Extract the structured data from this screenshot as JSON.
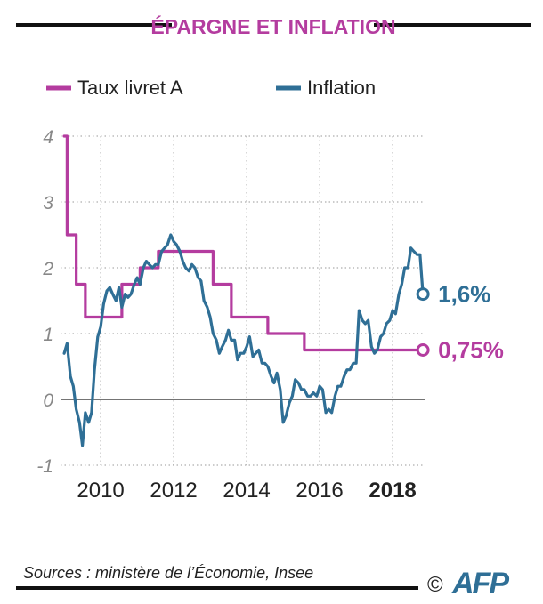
{
  "chart_data": {
    "type": "line",
    "title": "ÉPARGNE ET INFLATION",
    "xlabel": "",
    "ylabel": "",
    "xlim": [
      2008.9,
      2018.9
    ],
    "ylim": [
      -1,
      4
    ],
    "x_ticks": [
      {
        "value": 2010,
        "label": "2010",
        "bold": false
      },
      {
        "value": 2012,
        "label": "2012",
        "bold": false
      },
      {
        "value": 2014,
        "label": "2014",
        "bold": false
      },
      {
        "value": 2016,
        "label": "2016",
        "bold": false
      },
      {
        "value": 2018,
        "label": "2018",
        "bold": true
      }
    ],
    "y_ticks": [
      {
        "value": 4,
        "label": "4"
      },
      {
        "value": 3,
        "label": "3"
      },
      {
        "value": 2,
        "label": "2"
      },
      {
        "value": 1,
        "label": "1"
      },
      {
        "value": 0,
        "label": "0"
      },
      {
        "value": -1,
        "label": "-1"
      }
    ],
    "grid": true,
    "legend_position": "top-left",
    "series": [
      {
        "name": "Taux livret A",
        "color": "#b43c9f",
        "step": true,
        "points": [
          [
            2009.0,
            4.0
          ],
          [
            2009.08,
            2.5
          ],
          [
            2009.33,
            1.75
          ],
          [
            2009.58,
            1.25
          ],
          [
            2010.58,
            1.75
          ],
          [
            2011.08,
            2.0
          ],
          [
            2011.58,
            2.25
          ],
          [
            2013.08,
            1.75
          ],
          [
            2013.58,
            1.25
          ],
          [
            2014.58,
            1.0
          ],
          [
            2015.58,
            0.75
          ],
          [
            2018.83,
            0.75
          ]
        ],
        "end_label": "0,75%"
      },
      {
        "name": "Inflation",
        "color": "#2f6f96",
        "step": false,
        "points": [
          [
            2009.0,
            0.7
          ],
          [
            2009.08,
            0.85
          ],
          [
            2009.17,
            0.35
          ],
          [
            2009.25,
            0.2
          ],
          [
            2009.33,
            -0.15
          ],
          [
            2009.42,
            -0.35
          ],
          [
            2009.5,
            -0.7
          ],
          [
            2009.58,
            -0.2
          ],
          [
            2009.67,
            -0.35
          ],
          [
            2009.75,
            -0.2
          ],
          [
            2009.83,
            0.45
          ],
          [
            2009.92,
            0.95
          ],
          [
            2010.0,
            1.1
          ],
          [
            2010.08,
            1.45
          ],
          [
            2010.17,
            1.65
          ],
          [
            2010.25,
            1.7
          ],
          [
            2010.33,
            1.6
          ],
          [
            2010.42,
            1.5
          ],
          [
            2010.5,
            1.7
          ],
          [
            2010.58,
            1.4
          ],
          [
            2010.67,
            1.6
          ],
          [
            2010.75,
            1.55
          ],
          [
            2010.83,
            1.6
          ],
          [
            2010.92,
            1.75
          ],
          [
            2011.0,
            1.85
          ],
          [
            2011.08,
            1.75
          ],
          [
            2011.17,
            2.0
          ],
          [
            2011.25,
            2.1
          ],
          [
            2011.33,
            2.05
          ],
          [
            2011.42,
            2.0
          ],
          [
            2011.5,
            2.05
          ],
          [
            2011.58,
            2.05
          ],
          [
            2011.67,
            2.25
          ],
          [
            2011.75,
            2.3
          ],
          [
            2011.83,
            2.35
          ],
          [
            2011.92,
            2.5
          ],
          [
            2012.0,
            2.4
          ],
          [
            2012.08,
            2.35
          ],
          [
            2012.17,
            2.25
          ],
          [
            2012.25,
            2.1
          ],
          [
            2012.33,
            2.0
          ],
          [
            2012.42,
            1.95
          ],
          [
            2012.5,
            2.05
          ],
          [
            2012.58,
            2.0
          ],
          [
            2012.67,
            1.85
          ],
          [
            2012.75,
            1.8
          ],
          [
            2012.83,
            1.5
          ],
          [
            2012.92,
            1.4
          ],
          [
            2013.0,
            1.25
          ],
          [
            2013.08,
            1.0
          ],
          [
            2013.17,
            0.9
          ],
          [
            2013.25,
            0.7
          ],
          [
            2013.33,
            0.8
          ],
          [
            2013.42,
            0.9
          ],
          [
            2013.5,
            1.05
          ],
          [
            2013.58,
            0.9
          ],
          [
            2013.67,
            0.9
          ],
          [
            2013.75,
            0.6
          ],
          [
            2013.83,
            0.7
          ],
          [
            2013.92,
            0.7
          ],
          [
            2014.0,
            0.8
          ],
          [
            2014.08,
            0.95
          ],
          [
            2014.17,
            0.65
          ],
          [
            2014.25,
            0.7
          ],
          [
            2014.33,
            0.75
          ],
          [
            2014.42,
            0.55
          ],
          [
            2014.5,
            0.55
          ],
          [
            2014.58,
            0.5
          ],
          [
            2014.67,
            0.35
          ],
          [
            2014.75,
            0.25
          ],
          [
            2014.83,
            0.4
          ],
          [
            2014.92,
            0.15
          ],
          [
            2015.0,
            -0.35
          ],
          [
            2015.08,
            -0.25
          ],
          [
            2015.17,
            -0.05
          ],
          [
            2015.25,
            0.05
          ],
          [
            2015.33,
            0.3
          ],
          [
            2015.42,
            0.25
          ],
          [
            2015.5,
            0.15
          ],
          [
            2015.58,
            0.15
          ],
          [
            2015.67,
            0.05
          ],
          [
            2015.75,
            0.05
          ],
          [
            2015.83,
            0.1
          ],
          [
            2015.92,
            0.05
          ],
          [
            2016.0,
            0.2
          ],
          [
            2016.08,
            0.15
          ],
          [
            2016.17,
            -0.2
          ],
          [
            2016.25,
            -0.15
          ],
          [
            2016.33,
            -0.2
          ],
          [
            2016.42,
            0.05
          ],
          [
            2016.5,
            0.2
          ],
          [
            2016.58,
            0.2
          ],
          [
            2016.67,
            0.35
          ],
          [
            2016.75,
            0.45
          ],
          [
            2016.83,
            0.45
          ],
          [
            2016.92,
            0.55
          ],
          [
            2017.0,
            0.55
          ],
          [
            2017.08,
            1.35
          ],
          [
            2017.17,
            1.2
          ],
          [
            2017.25,
            1.15
          ],
          [
            2017.33,
            1.2
          ],
          [
            2017.42,
            0.8
          ],
          [
            2017.5,
            0.7
          ],
          [
            2017.58,
            0.75
          ],
          [
            2017.67,
            0.95
          ],
          [
            2017.75,
            1.0
          ],
          [
            2017.83,
            1.15
          ],
          [
            2017.92,
            1.2
          ],
          [
            2018.0,
            1.35
          ],
          [
            2018.08,
            1.3
          ],
          [
            2018.17,
            1.6
          ],
          [
            2018.25,
            1.75
          ],
          [
            2018.33,
            2.0
          ],
          [
            2018.42,
            2.0
          ],
          [
            2018.5,
            2.3
          ],
          [
            2018.58,
            2.25
          ],
          [
            2018.67,
            2.2
          ],
          [
            2018.75,
            2.2
          ],
          [
            2018.83,
            1.6
          ]
        ],
        "end_label": "1,6%"
      }
    ]
  },
  "footer": {
    "source": "Sources : ministère de l’Économie, Insee",
    "copyright": "©",
    "logo": "AFP"
  }
}
